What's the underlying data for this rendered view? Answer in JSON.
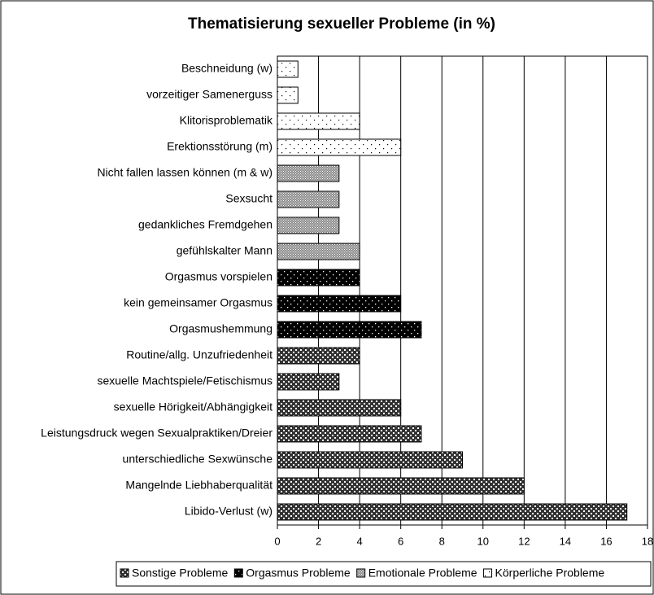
{
  "chart_data": {
    "type": "bar",
    "orientation": "horizontal",
    "title": "Thematisierung sexueller Probleme (in %)",
    "xlim": [
      0,
      18
    ],
    "xticks": [
      0,
      2,
      4,
      6,
      8,
      10,
      12,
      14,
      16,
      18
    ],
    "grid": true,
    "legend": "bottom",
    "series": [
      {
        "name": "Sonstige Probleme",
        "color": "#333333",
        "categories": [
          "Routine/allg. Unzufriedenheit",
          "sexuelle Machtspiele/Fetischismus",
          "sexuelle Hörigkeit/Abhängigkeit",
          "Leistungsdruck wegen Sexualpraktiken/Dreier",
          "unterschiedliche Sexwünsche",
          "Mangelnde Liebhaberqualität",
          "Libido-Verlust (w)"
        ],
        "values": [
          4,
          3,
          6,
          7,
          9,
          12,
          17
        ]
      },
      {
        "name": "Orgasmus Probleme",
        "color": "#000000",
        "categories": [
          "Orgasmus vorspielen",
          "kein gemeinsamer Orgasmus",
          "Orgasmushemmung"
        ],
        "values": [
          4,
          6,
          7
        ]
      },
      {
        "name": "Emotionale Probleme",
        "color": "#8c8c8c",
        "categories": [
          "Nicht fallen lassen können (m & w)",
          "Sexsucht",
          "gedankliches Fremdgehen",
          "gefühlskalter Mann"
        ],
        "values": [
          3,
          3,
          3,
          4
        ]
      },
      {
        "name": "Körperliche Probleme",
        "color": "#ffffff",
        "categories": [
          "Beschneidung (w)",
          "vorzeitiger Samenerguss",
          "Klitorisproblematik",
          "Erektionsstörung (m)"
        ],
        "values": [
          1,
          1,
          4,
          6
        ]
      }
    ]
  }
}
